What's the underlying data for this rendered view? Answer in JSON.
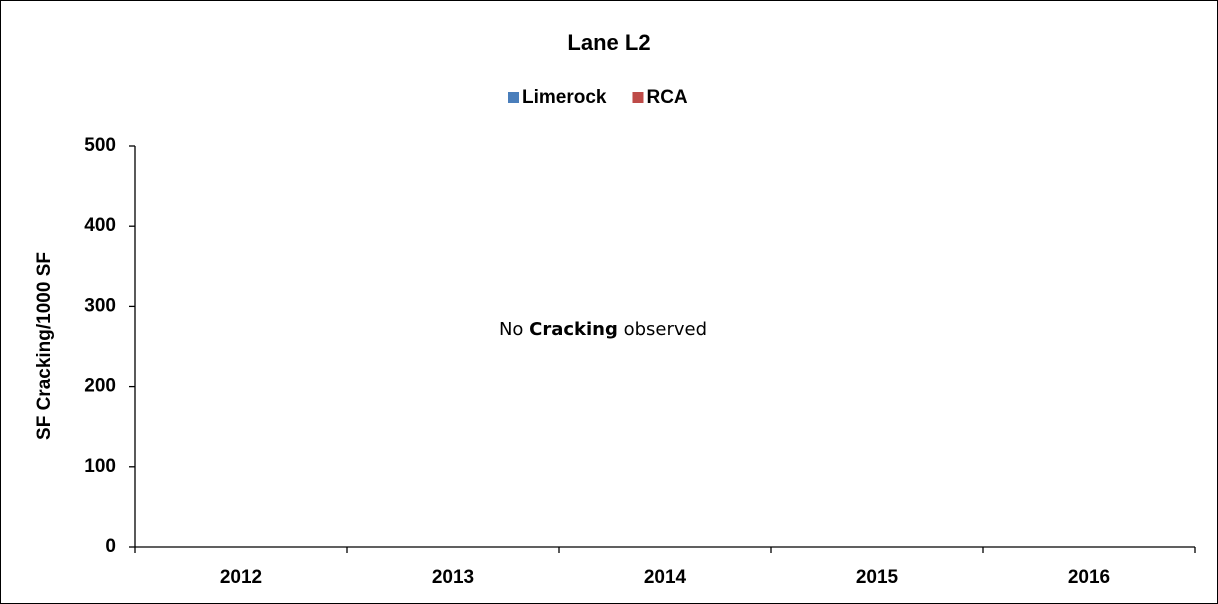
{
  "chart_data": {
    "type": "bar",
    "title": "Lane L2",
    "categories": [
      "2012",
      "2013",
      "2014",
      "2015",
      "2016"
    ],
    "series": [
      {
        "name": "Limerock",
        "color": "#4a7ebb",
        "values": [
          0,
          0,
          0,
          0,
          0
        ]
      },
      {
        "name": "RCA",
        "color": "#be4b48",
        "values": [
          0,
          0,
          0,
          0,
          0
        ]
      }
    ],
    "y_label": "SF Cracking/1000 SF",
    "annotation": [
      "No ",
      "Cracking",
      " observed"
    ],
    "ylim": [
      0,
      500
    ],
    "yticks": [
      0,
      100,
      200,
      300,
      400,
      500
    ],
    "grid": false,
    "legend": "top"
  }
}
